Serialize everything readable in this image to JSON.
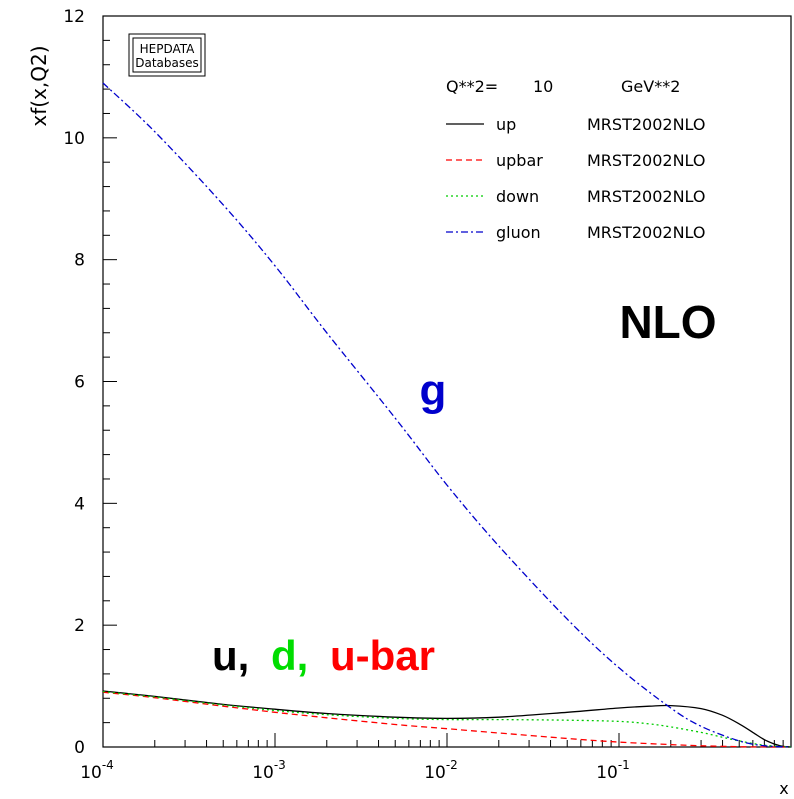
{
  "chart_data": {
    "type": "line",
    "title": "",
    "ylabel": "xf(x,Q2)",
    "xlabel": "x",
    "xscale": "log",
    "xlim": [
      0.0001,
      1
    ],
    "ylim": [
      0,
      12
    ],
    "grid": false,
    "logo": {
      "line1": "HEPDATA",
      "line2": "Databases"
    },
    "legend_header": {
      "label": "Q**2=",
      "value": "10",
      "unit": "GeV**2"
    },
    "legend_placement": "top-right",
    "yticks": [
      0,
      2,
      4,
      6,
      8,
      10,
      12
    ],
    "xticks": [
      {
        "value": 0.0001,
        "base": "10",
        "exp": "-4"
      },
      {
        "value": 0.001,
        "base": "10",
        "exp": "-3"
      },
      {
        "value": 0.01,
        "base": "10",
        "exp": "-2"
      },
      {
        "value": 0.1,
        "base": "10",
        "exp": "-1"
      }
    ],
    "series": [
      {
        "name": "up",
        "set": "MRST2002NLO",
        "color": "#000000",
        "dash": "solid",
        "x": [
          0.0001,
          0.0002,
          0.0005,
          0.001,
          0.002,
          0.005,
          0.01,
          0.02,
          0.05,
          0.1,
          0.15,
          0.2,
          0.3,
          0.4,
          0.5,
          0.6,
          0.7,
          0.8,
          0.9,
          1.0
        ],
        "y": [
          0.92,
          0.83,
          0.7,
          0.62,
          0.55,
          0.49,
          0.47,
          0.49,
          0.57,
          0.64,
          0.67,
          0.68,
          0.63,
          0.52,
          0.38,
          0.24,
          0.12,
          0.05,
          0.01,
          0.0
        ]
      },
      {
        "name": "upbar",
        "set": "MRST2002NLO",
        "color": "#ff0000",
        "dash": "dashed",
        "x": [
          0.0001,
          0.0002,
          0.0005,
          0.001,
          0.002,
          0.005,
          0.01,
          0.02,
          0.05,
          0.1,
          0.2,
          0.3,
          0.5,
          0.7,
          1.0
        ],
        "y": [
          0.9,
          0.81,
          0.67,
          0.57,
          0.48,
          0.37,
          0.3,
          0.23,
          0.14,
          0.08,
          0.04,
          0.02,
          0.005,
          0.001,
          0.0
        ]
      },
      {
        "name": "down",
        "set": "MRST2002NLO",
        "color": "#00cc00",
        "dash": "dotted",
        "x": [
          0.0001,
          0.0002,
          0.0005,
          0.001,
          0.002,
          0.005,
          0.01,
          0.02,
          0.05,
          0.1,
          0.15,
          0.2,
          0.3,
          0.4,
          0.5,
          0.7,
          1.0
        ],
        "y": [
          0.91,
          0.82,
          0.69,
          0.6,
          0.53,
          0.47,
          0.45,
          0.45,
          0.44,
          0.42,
          0.38,
          0.33,
          0.24,
          0.16,
          0.1,
          0.03,
          0.0
        ]
      },
      {
        "name": "gluon",
        "set": "MRST2002NLO",
        "color": "#0000cc",
        "dash": "dashdot",
        "x": [
          0.0001,
          0.0002,
          0.0005,
          0.001,
          0.002,
          0.005,
          0.01,
          0.02,
          0.05,
          0.1,
          0.2,
          0.3,
          0.5,
          0.7,
          1.0
        ],
        "y": [
          10.9,
          10.1,
          8.9,
          7.9,
          6.8,
          5.4,
          4.3,
          3.3,
          2.1,
          1.3,
          0.64,
          0.34,
          0.1,
          0.02,
          0.0
        ]
      }
    ],
    "annotations": [
      {
        "name": "nlo",
        "text": "NLO",
        "color": "#000000"
      },
      {
        "name": "g",
        "text": "g",
        "color": "#0000cc"
      },
      {
        "name": "u",
        "text": "u,",
        "color": "#000000"
      },
      {
        "name": "d",
        "text": "d,",
        "color": "#00dd00"
      },
      {
        "name": "ubar",
        "text": "u-bar",
        "color": "#ff0000"
      }
    ]
  }
}
